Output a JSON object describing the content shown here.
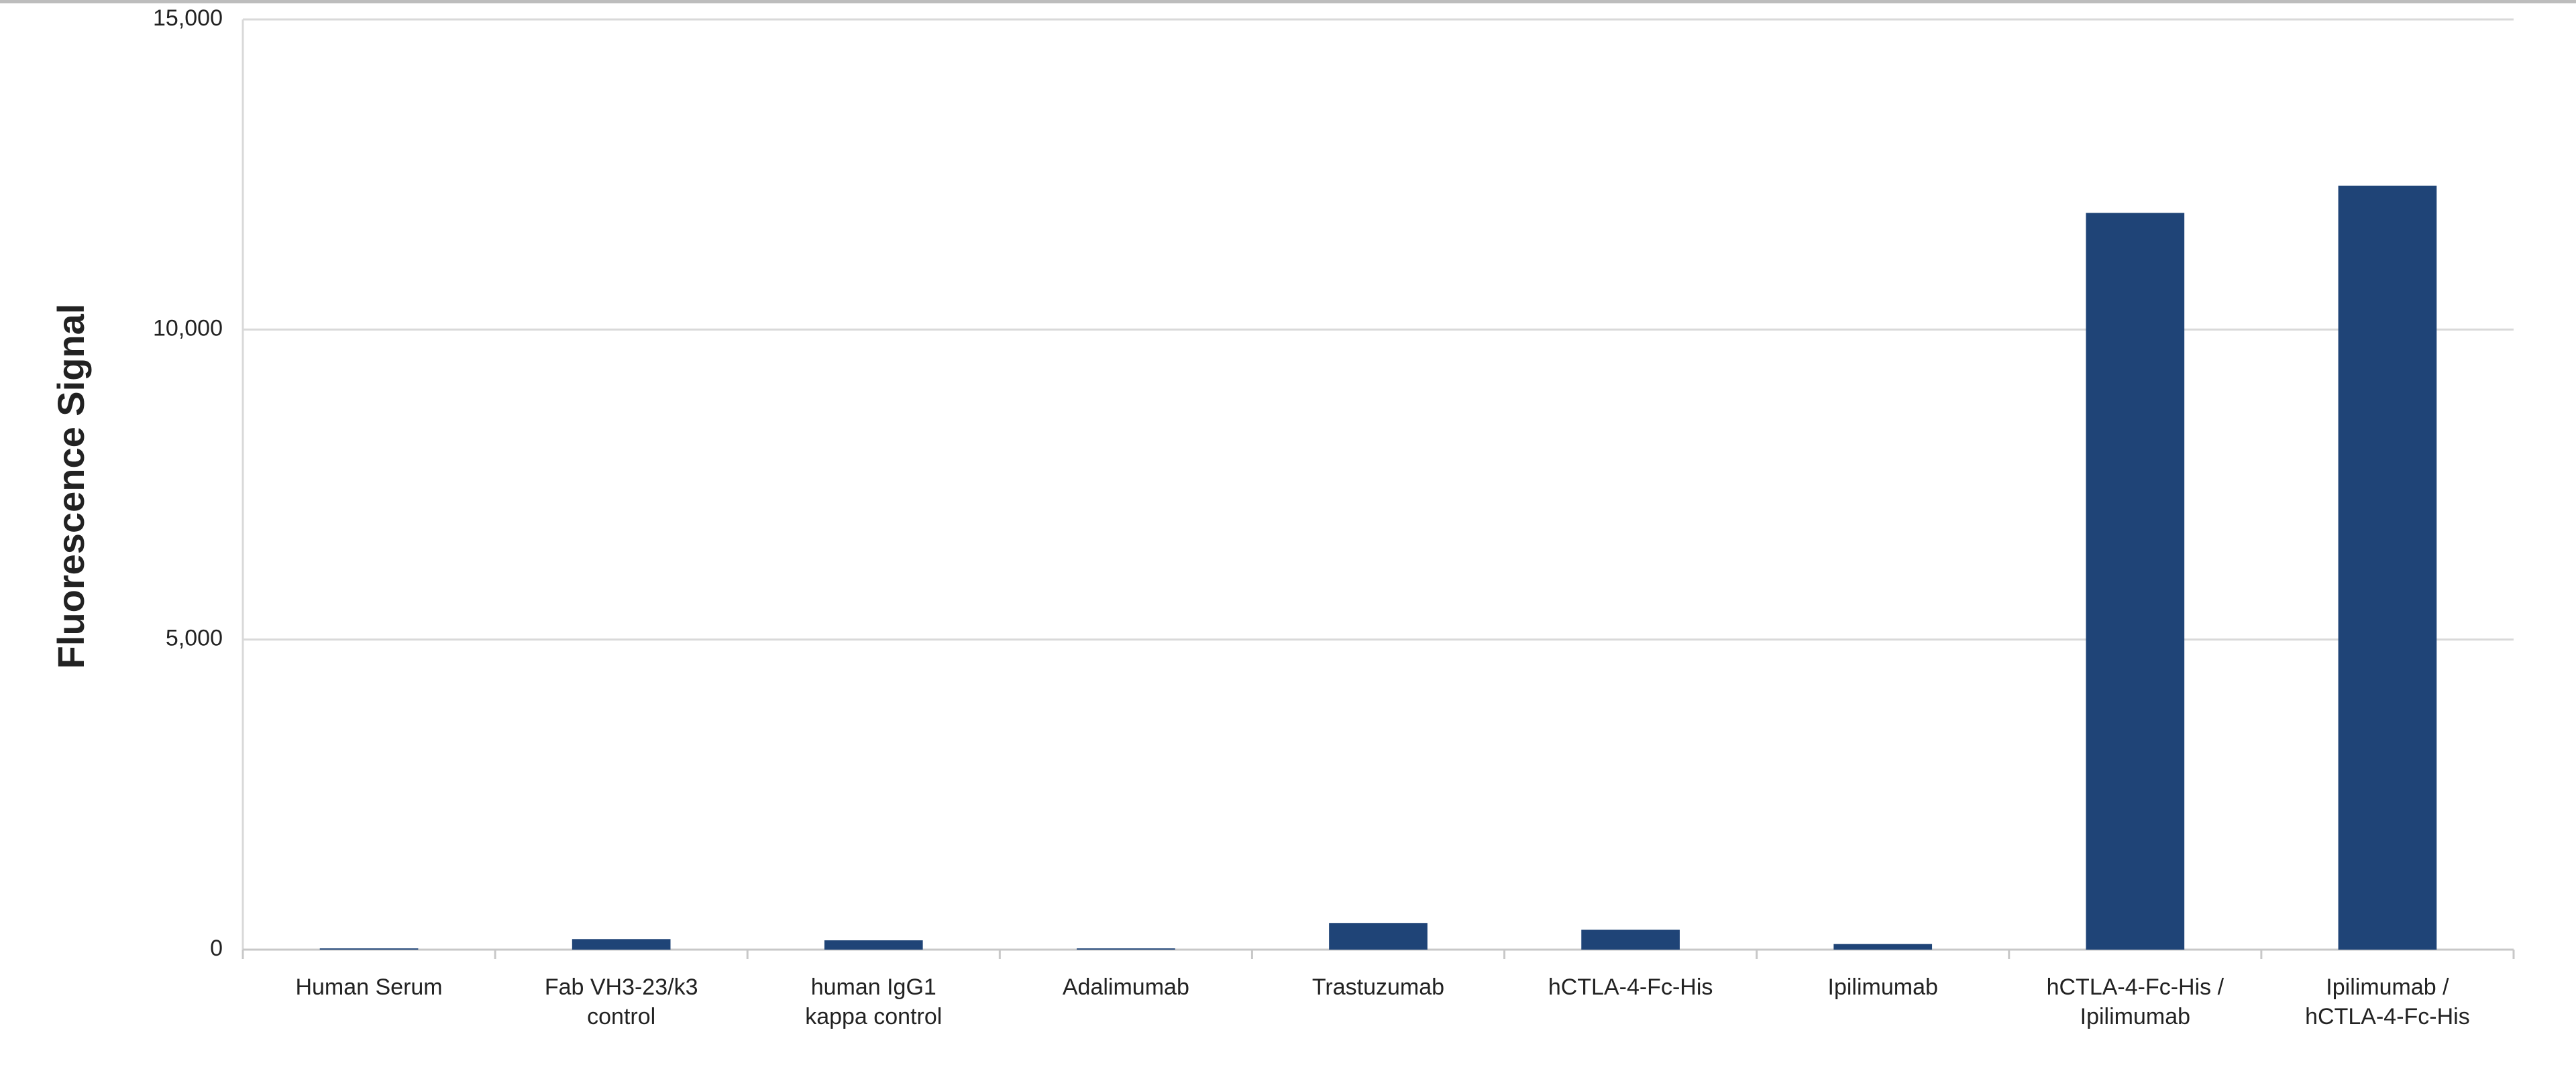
{
  "chart_data": {
    "type": "bar",
    "y_label": "Fluorescence Signal",
    "categories": [
      "Human Serum",
      "Fab VH3-23/k3\ncontrol",
      "human IgG1\nkappa control",
      "Adalimumab",
      "Trastuzumab",
      "hCTLA-4-Fc-His",
      "Ipilimumab",
      "hCTLA-4-Fc-His /\nIpilimumab",
      "Ipilimumab /\nhCTLA-4-Fc-His"
    ],
    "values": [
      20,
      170,
      150,
      20,
      430,
      320,
      90,
      11880,
      12320
    ],
    "color": "#1f4477",
    "ylim": [
      0,
      15000
    ],
    "yticks": [
      0,
      {
        "value": 5000,
        "label": "5,000"
      },
      {
        "value": 10000,
        "label": "10,000"
      },
      {
        "value": 15000,
        "label": "15,000"
      }
    ],
    "grid": true
  }
}
